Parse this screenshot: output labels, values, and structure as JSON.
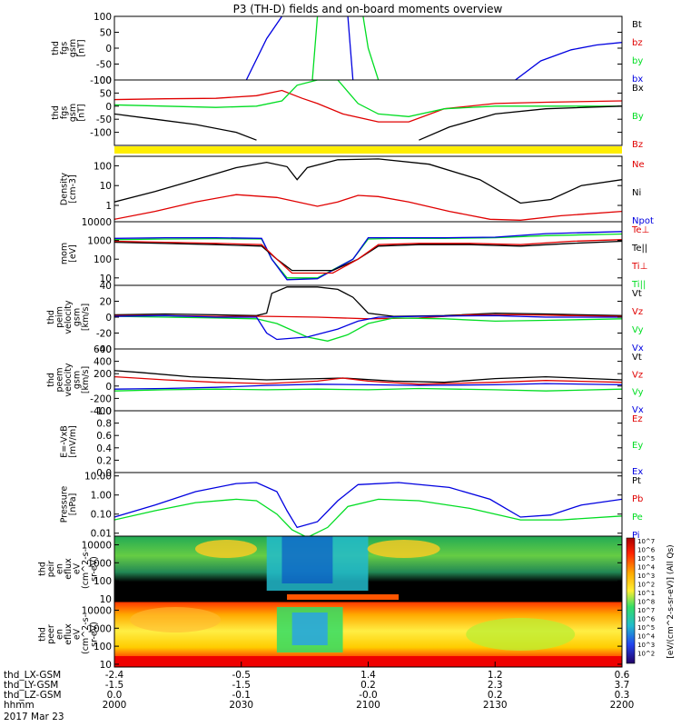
{
  "title": "P3 (TH-D) fields and on-board moments overview",
  "colors": {
    "black": "#000000",
    "red": "#e00000",
    "green": "#00dd22",
    "blue": "#0000e0",
    "yellow": "#ffee00"
  },
  "chart_data": [
    {
      "id": "fgs",
      "type": "line",
      "ylabel": [
        "thd",
        "fgs",
        "gsm",
        "[nT]"
      ],
      "ylim": [
        -100,
        100
      ],
      "yticks": [
        "100",
        "50",
        "0",
        "-50",
        "-100"
      ],
      "legend": [
        {
          "name": "Bt",
          "color": "black"
        },
        {
          "name": "bz",
          "color": "red"
        },
        {
          "name": "by",
          "color": "green"
        },
        {
          "name": "bx",
          "color": "blue"
        }
      ],
      "series": [
        {
          "name": "bx",
          "color": "blue",
          "x": [
            0.26,
            0.3,
            0.33
          ],
          "y": [
            -100,
            30,
            100
          ]
        },
        {
          "name": "bx",
          "color": "blue",
          "x": [
            0.46,
            0.465,
            0.47
          ],
          "y": [
            100,
            0,
            -100
          ]
        },
        {
          "name": "by",
          "color": "green",
          "x": [
            0.39,
            0.395,
            0.4
          ],
          "y": [
            -100,
            0,
            100
          ]
        },
        {
          "name": "by",
          "color": "green",
          "x": [
            0.49,
            0.5,
            0.52
          ],
          "y": [
            100,
            0,
            -100
          ]
        },
        {
          "name": "bx",
          "color": "blue",
          "x": [
            0.79,
            0.84,
            0.9,
            0.95,
            1.0
          ],
          "y": [
            -100,
            -40,
            -5,
            10,
            18
          ]
        }
      ]
    },
    {
      "id": "fgs_dsl",
      "type": "line",
      "ylabel": [
        "thd",
        "fgs",
        "gsm",
        "[nT]"
      ],
      "ylim": [
        -150,
        100
      ],
      "yticks": [
        "100",
        "50",
        "0",
        "-50",
        "-100"
      ],
      "legend": [
        {
          "name": "Bx",
          "color": "black"
        },
        {
          "name": "By",
          "color": "green"
        },
        {
          "name": "Bz",
          "color": "red"
        }
      ],
      "series": [
        {
          "name": "Bz",
          "color": "red",
          "x": [
            0.0,
            0.1,
            0.2,
            0.28,
            0.33,
            0.37,
            0.4,
            0.45,
            0.52,
            0.58,
            0.65,
            0.75,
            0.85,
            1.0
          ],
          "y": [
            25,
            28,
            30,
            40,
            60,
            30,
            10,
            -30,
            -60,
            -60,
            -10,
            10,
            15,
            20
          ]
        },
        {
          "name": "By",
          "color": "green",
          "x": [
            0.0,
            0.1,
            0.2,
            0.28,
            0.33,
            0.36,
            0.4,
            0.44,
            0.48,
            0.52,
            0.58,
            0.65,
            0.75,
            1.0
          ],
          "y": [
            5,
            0,
            -5,
            0,
            20,
            80,
            100,
            100,
            10,
            -30,
            -40,
            -10,
            0,
            0
          ]
        },
        {
          "name": "Bx",
          "color": "black",
          "x": [
            0.0,
            0.08,
            0.16,
            0.24,
            0.28
          ],
          "y": [
            -30,
            -50,
            -70,
            -100,
            -130
          ]
        },
        {
          "name": "Bx",
          "color": "black",
          "x": [
            0.6,
            0.66,
            0.75,
            0.85,
            1.0
          ],
          "y": [
            -130,
            -80,
            -30,
            -10,
            0
          ]
        }
      ]
    },
    {
      "id": "density",
      "type": "line",
      "ylabel": [
        "Density",
        "[cm-3]"
      ],
      "yscale": "log",
      "ylim": [
        0.15,
        300
      ],
      "yticks": [
        "100",
        "10",
        "1"
      ],
      "legend": [
        {
          "name": "Ne",
          "color": "red"
        },
        {
          "name": "Ni",
          "color": "black"
        },
        {
          "name": "Npot",
          "color": "blue"
        }
      ],
      "series": [
        {
          "name": "Ni",
          "color": "black",
          "x": [
            0.0,
            0.08,
            0.16,
            0.24,
            0.3,
            0.34,
            0.36,
            0.38,
            0.44,
            0.52,
            0.62,
            0.72,
            0.8,
            0.86,
            0.92,
            1.0
          ],
          "y": [
            1.5,
            5,
            20,
            80,
            150,
            90,
            20,
            80,
            200,
            220,
            120,
            20,
            1.3,
            2.0,
            10,
            20
          ]
        },
        {
          "name": "Ne",
          "color": "red",
          "x": [
            0.0,
            0.08,
            0.16,
            0.24,
            0.32,
            0.4,
            0.44,
            0.48,
            0.52,
            0.58,
            0.66,
            0.74,
            0.8,
            0.88,
            1.0
          ],
          "y": [
            0.2,
            0.5,
            1.5,
            3.5,
            2.5,
            0.9,
            1.5,
            3.2,
            2.8,
            1.5,
            0.5,
            0.2,
            0.18,
            0.3,
            0.5
          ]
        }
      ]
    },
    {
      "id": "mom_temp",
      "type": "line",
      "ylabel": [
        "mom",
        "[eV]"
      ],
      "yscale": "log",
      "ylim": [
        4,
        10000
      ],
      "yticks": [
        "10000",
        "1000",
        "100",
        "10"
      ],
      "legend": [
        {
          "name": "Te⊥",
          "color": "red"
        },
        {
          "name": "Te||",
          "color": "black"
        },
        {
          "name": "Ti⊥",
          "color": "red"
        },
        {
          "name": "Ti||",
          "color": "green"
        }
      ],
      "series": [
        {
          "name": "Ti||",
          "color": "green",
          "x": [
            0.0,
            0.1,
            0.2,
            0.29,
            0.31,
            0.34,
            0.4,
            0.47,
            0.5,
            0.55,
            0.65,
            0.75,
            0.85,
            1.0
          ],
          "y": [
            1100,
            1200,
            1250,
            1200,
            100,
            10,
            10,
            100,
            1200,
            1300,
            1300,
            1400,
            1800,
            2200
          ]
        },
        {
          "name": "Ti⊥",
          "color": "blue",
          "x": [
            0.0,
            0.1,
            0.2,
            0.29,
            0.31,
            0.34,
            0.4,
            0.47,
            0.5,
            0.55,
            0.65,
            0.75,
            0.85,
            1.0
          ],
          "y": [
            1300,
            1400,
            1400,
            1300,
            100,
            8,
            9,
            100,
            1400,
            1400,
            1400,
            1500,
            2300,
            3000
          ]
        },
        {
          "name": "Te||",
          "color": "black",
          "x": [
            0.0,
            0.1,
            0.2,
            0.29,
            0.32,
            0.35,
            0.43,
            0.48,
            0.52,
            0.6,
            0.7,
            0.8,
            0.9,
            1.0
          ],
          "y": [
            800,
            700,
            600,
            500,
            100,
            25,
            25,
            100,
            500,
            600,
            600,
            500,
            700,
            900
          ]
        },
        {
          "name": "Te⊥",
          "color": "red",
          "x": [
            0.0,
            0.1,
            0.2,
            0.29,
            0.32,
            0.35,
            0.43,
            0.48,
            0.52,
            0.6,
            0.7,
            0.8,
            0.9,
            1.0
          ],
          "y": [
            900,
            800,
            700,
            600,
            100,
            18,
            18,
            100,
            600,
            700,
            700,
            600,
            900,
            1100
          ]
        }
      ]
    },
    {
      "id": "peim_vel",
      "type": "line",
      "ylabel": [
        "thd",
        "peim",
        "velocity",
        "gsm",
        "[km/s]"
      ],
      "ylim": [
        -40,
        40
      ],
      "yticks": [
        "40",
        "20",
        "0",
        "-20",
        "-40"
      ],
      "legend": [
        {
          "name": "Vt",
          "color": "black"
        },
        {
          "name": "Vz",
          "color": "red"
        },
        {
          "name": "Vy",
          "color": "green"
        },
        {
          "name": "Vx",
          "color": "blue"
        }
      ],
      "series": [
        {
          "name": "Vt",
          "color": "black",
          "x": [
            0.0,
            0.1,
            0.2,
            0.28,
            0.3,
            0.31,
            0.34,
            0.4,
            0.44,
            0.47,
            0.5,
            0.55,
            0.65,
            0.75,
            0.85,
            1.0
          ],
          "y": [
            3,
            4,
            3,
            2,
            5,
            30,
            38,
            38,
            35,
            25,
            5,
            1,
            2,
            5,
            4,
            2
          ]
        },
        {
          "name": "Vz",
          "color": "red",
          "x": [
            0.0,
            0.1,
            0.2,
            0.3,
            0.4,
            0.5,
            0.6,
            0.7,
            0.8,
            0.9,
            1.0
          ],
          "y": [
            2,
            2,
            1,
            1,
            0,
            -2,
            -1,
            3,
            3,
            2,
            1
          ]
        },
        {
          "name": "Vy",
          "color": "green",
          "x": [
            0.0,
            0.1,
            0.2,
            0.28,
            0.32,
            0.38,
            0.42,
            0.46,
            0.5,
            0.55,
            0.65,
            0.75,
            0.85,
            1.0
          ],
          "y": [
            1,
            0,
            -1,
            -2,
            -8,
            -25,
            -30,
            -22,
            -8,
            -1,
            -2,
            -5,
            -4,
            -2
          ]
        },
        {
          "name": "Vx",
          "color": "blue",
          "x": [
            0.0,
            0.1,
            0.2,
            0.28,
            0.3,
            0.32,
            0.38,
            0.44,
            0.48,
            0.52,
            0.6,
            0.75,
            0.85,
            1.0
          ],
          "y": [
            1,
            2,
            0,
            0,
            -20,
            -28,
            -25,
            -15,
            -5,
            0,
            1,
            2,
            0,
            0
          ]
        }
      ]
    },
    {
      "id": "peem_vel",
      "type": "line",
      "ylabel": [
        "thd",
        "peem",
        "velocity",
        "gsm",
        "[km/s]"
      ],
      "ylim": [
        -400,
        600
      ],
      "yticks": [
        "600",
        "400",
        "200",
        "0",
        "-200",
        "-400"
      ],
      "legend": [
        {
          "name": "Vt",
          "color": "black"
        },
        {
          "name": "Vz",
          "color": "red"
        },
        {
          "name": "Vy",
          "color": "green"
        },
        {
          "name": "Vx",
          "color": "blue"
        }
      ],
      "series": [
        {
          "name": "Vt",
          "color": "black",
          "x": [
            0.0,
            0.05,
            0.15,
            0.3,
            0.45,
            0.55,
            0.65,
            0.75,
            0.85,
            1.0
          ],
          "y": [
            250,
            220,
            150,
            100,
            130,
            80,
            60,
            120,
            150,
            100
          ]
        },
        {
          "name": "Vz",
          "color": "red",
          "x": [
            0.0,
            0.1,
            0.2,
            0.3,
            0.4,
            0.45,
            0.5,
            0.6,
            0.75,
            0.85,
            1.0
          ],
          "y": [
            150,
            100,
            60,
            40,
            80,
            130,
            80,
            30,
            60,
            90,
            60
          ]
        },
        {
          "name": "Vx",
          "color": "blue",
          "x": [
            0.0,
            0.1,
            0.2,
            0.3,
            0.4,
            0.5,
            0.6,
            0.75,
            0.85,
            1.0
          ],
          "y": [
            -50,
            -40,
            -20,
            10,
            30,
            20,
            10,
            20,
            40,
            20
          ]
        },
        {
          "name": "Vy",
          "color": "green",
          "x": [
            0.0,
            0.1,
            0.2,
            0.3,
            0.4,
            0.5,
            0.6,
            0.75,
            0.85,
            1.0
          ],
          "y": [
            -80,
            -60,
            -50,
            -60,
            -50,
            -60,
            -40,
            -60,
            -80,
            -50
          ]
        }
      ]
    },
    {
      "id": "efield",
      "type": "line",
      "ylabel": [
        "E=-VxB",
        "[mV/m]"
      ],
      "ylim": [
        0.0,
        1.0
      ],
      "yticks": [
        "1.0",
        "0.8",
        "0.6",
        "0.4",
        "0.2",
        "0.0"
      ],
      "legend": [
        {
          "name": "Ez",
          "color": "red"
        },
        {
          "name": "Ey",
          "color": "green"
        },
        {
          "name": "Ex",
          "color": "blue"
        }
      ],
      "series": []
    },
    {
      "id": "pressure",
      "type": "line",
      "ylabel": [
        "Pressure",
        "[nPa]"
      ],
      "yscale": "log",
      "ylim": [
        0.007,
        15
      ],
      "yticks": [
        "10.00",
        "1.00",
        "0.10",
        "0.01"
      ],
      "legend": [
        {
          "name": "Pt",
          "color": "black"
        },
        {
          "name": "Pb",
          "color": "red"
        },
        {
          "name": "Pe",
          "color": "green"
        },
        {
          "name": "Pi",
          "color": "blue"
        }
      ],
      "series": [
        {
          "name": "Pi",
          "color": "blue",
          "x": [
            0.0,
            0.08,
            0.16,
            0.24,
            0.28,
            0.32,
            0.34,
            0.36,
            0.4,
            0.44,
            0.48,
            0.56,
            0.66,
            0.74,
            0.8,
            0.86,
            0.92,
            1.0
          ],
          "y": [
            0.07,
            0.3,
            1.5,
            4.0,
            4.5,
            1.5,
            0.15,
            0.02,
            0.04,
            0.5,
            3.5,
            4.5,
            2.5,
            0.6,
            0.07,
            0.09,
            0.3,
            0.6
          ]
        },
        {
          "name": "Pe",
          "color": "green",
          "x": [
            0.0,
            0.08,
            0.16,
            0.24,
            0.28,
            0.32,
            0.35,
            0.38,
            0.42,
            0.46,
            0.52,
            0.6,
            0.7,
            0.8,
            0.88,
            1.0
          ],
          "y": [
            0.05,
            0.15,
            0.4,
            0.6,
            0.5,
            0.1,
            0.015,
            0.006,
            0.02,
            0.25,
            0.6,
            0.5,
            0.2,
            0.05,
            0.05,
            0.08
          ]
        }
      ]
    },
    {
      "id": "peir",
      "type": "heatmap",
      "ylabel": [
        "thd",
        "peir",
        "en",
        "eflux",
        "eV",
        "(cm^2-s-",
        "sr-eV)"
      ],
      "yscale": "log",
      "ylim": [
        7,
        30000
      ],
      "yticks": [
        "10000",
        "1000",
        "100",
        "10"
      ]
    },
    {
      "id": "peer",
      "type": "heatmap",
      "ylabel": [
        "thd",
        "peer",
        "en",
        "eflux",
        "eV",
        "(cm^2-s-",
        "sr-eV)"
      ],
      "yscale": "log",
      "ylim": [
        7,
        30000
      ],
      "yticks": [
        "10000",
        "1000",
        "100",
        "10"
      ]
    }
  ],
  "colorbar": {
    "title": "[eV/(cm^2-s-sr-eV)] (All Qs)",
    "ticks": [
      "10^7",
      "10^6",
      "10^5",
      "10^4",
      "10^3",
      "10^2",
      "10^1",
      "10^8",
      "10^7",
      "10^6",
      "10^5",
      "10^4",
      "10^3",
      "10^2"
    ]
  },
  "xaxis": {
    "rows": [
      {
        "label": "thd_LX-GSM",
        "values": [
          "-2.4",
          "-0.5",
          "1.4",
          "1.2",
          "0.6"
        ]
      },
      {
        "label": "thd_LY-GSM",
        "values": [
          "-1.5",
          "-1.5",
          "0.2",
          "2.3",
          "3.7"
        ]
      },
      {
        "label": "thd_LZ-GSM",
        "values": [
          "0.0",
          "-0.1",
          "-0.0",
          "0.2",
          "0.3"
        ]
      },
      {
        "label": "hhmm",
        "values": [
          "2000",
          "2030",
          "2100",
          "2130",
          "2200"
        ]
      }
    ],
    "date": "2017 Mar 23"
  }
}
